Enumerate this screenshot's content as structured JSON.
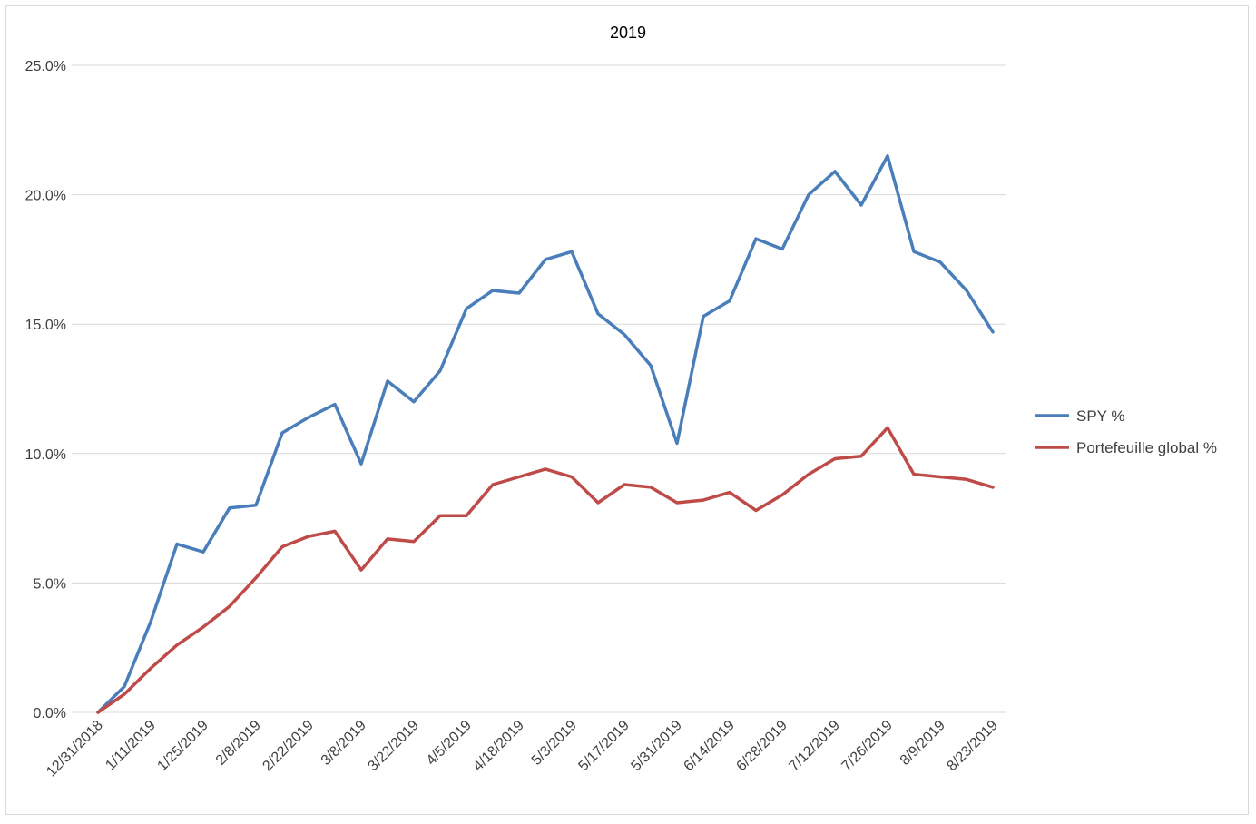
{
  "chart_data": {
    "type": "line",
    "title": "2019",
    "xlabel": "",
    "ylabel": "",
    "ylim": [
      0,
      25
    ],
    "y_ticks": [
      "0.0%",
      "5.0%",
      "10.0%",
      "15.0%",
      "20.0%",
      "25.0%"
    ],
    "y_tick_values": [
      0,
      5,
      10,
      15,
      20,
      25
    ],
    "x_tick_labels": [
      "12/31/2018",
      "1/11/2019",
      "1/25/2019",
      "2/8/2019",
      "2/22/2019",
      "3/8/2019",
      "3/22/2019",
      "4/5/2019",
      "4/18/2019",
      "5/3/2019",
      "5/17/2019",
      "5/31/2019",
      "6/14/2019",
      "6/28/2019",
      "7/12/2019",
      "7/26/2019",
      "8/9/2019",
      "8/23/2019"
    ],
    "grid": true,
    "legend_position": "right",
    "series": [
      {
        "name": "SPY %",
        "color": "#4a7ebb",
        "values": [
          0.0,
          1.0,
          3.5,
          6.5,
          6.2,
          7.9,
          8.0,
          10.8,
          11.4,
          11.9,
          9.6,
          12.8,
          12.0,
          13.2,
          15.6,
          16.3,
          16.2,
          17.5,
          17.8,
          15.4,
          14.6,
          13.4,
          10.4,
          15.3,
          15.9,
          18.3,
          17.9,
          20.0,
          20.9,
          19.6,
          21.5,
          17.8,
          17.4,
          16.3,
          14.7
        ]
      },
      {
        "name": "Portefeuille global %",
        "color": "#be4b48",
        "values": [
          0.0,
          0.7,
          1.7,
          2.6,
          3.3,
          4.1,
          5.2,
          6.4,
          6.8,
          7.0,
          5.5,
          6.7,
          6.6,
          7.6,
          7.6,
          8.8,
          9.1,
          9.4,
          9.1,
          8.1,
          8.8,
          8.7,
          8.1,
          8.2,
          8.5,
          7.8,
          8.4,
          9.2,
          9.8,
          9.9,
          11.0,
          9.2,
          9.1,
          9.0,
          8.7
        ]
      }
    ]
  }
}
